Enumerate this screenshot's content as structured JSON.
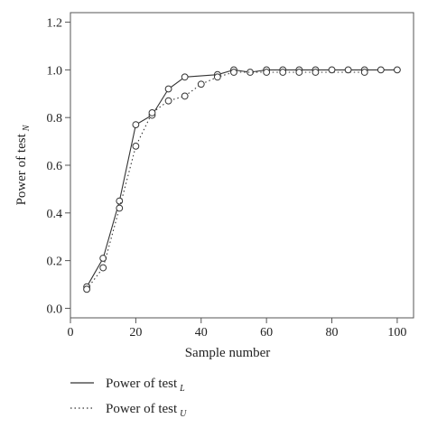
{
  "chart_data": {
    "type": "line",
    "xlabel": "Sample number",
    "ylabel": "Power of test",
    "ylabel_subscript": "N",
    "xlim": [
      0,
      105
    ],
    "ylim": [
      -0.04,
      1.24
    ],
    "x_ticks": [
      "0",
      "20",
      "40",
      "60",
      "80",
      "100"
    ],
    "x_tick_values": [
      0,
      20,
      40,
      60,
      80,
      100
    ],
    "y_ticks": [
      "0.0",
      "0.2",
      "0.4",
      "0.6",
      "0.8",
      "1.0",
      "1.2"
    ],
    "y_tick_values": [
      0,
      0.2,
      0.4,
      0.6,
      0.8,
      1.0,
      1.2
    ],
    "grid": false,
    "legend_position": "bottom-left",
    "series": [
      {
        "name": "Power of test",
        "subscript": "L",
        "line_style": "solid",
        "marker": "open-circle",
        "x": [
          5,
          10,
          15,
          20,
          25,
          30,
          35,
          45,
          50,
          55,
          60,
          65,
          70,
          75,
          80,
          85,
          90,
          95,
          100
        ],
        "y": [
          0.09,
          0.21,
          0.45,
          0.77,
          0.81,
          0.92,
          0.97,
          0.98,
          1.0,
          0.99,
          1.0,
          1.0,
          1.0,
          1.0,
          1.0,
          1.0,
          1.0,
          1.0,
          1.0
        ]
      },
      {
        "name": "Power of test",
        "subscript": "U",
        "line_style": "dotted",
        "marker": "open-circle",
        "x": [
          5,
          10,
          15,
          20,
          25,
          30,
          35,
          40,
          45,
          50,
          60,
          65,
          70,
          75,
          90
        ],
        "y": [
          0.08,
          0.17,
          0.42,
          0.68,
          0.82,
          0.87,
          0.89,
          0.94,
          0.97,
          0.99,
          0.99,
          0.99,
          0.99,
          0.99,
          0.99
        ]
      }
    ]
  }
}
